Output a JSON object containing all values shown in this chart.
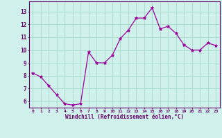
{
  "x": [
    0,
    1,
    2,
    3,
    4,
    5,
    6,
    7,
    8,
    9,
    10,
    11,
    12,
    13,
    14,
    15,
    16,
    17,
    18,
    19,
    20,
    21,
    22,
    23
  ],
  "y": [
    8.2,
    7.9,
    7.2,
    6.5,
    5.8,
    5.7,
    5.8,
    9.85,
    9.0,
    9.0,
    9.6,
    10.9,
    11.55,
    12.5,
    12.5,
    13.3,
    11.65,
    11.85,
    11.3,
    10.4,
    10.0,
    10.0,
    10.55,
    10.35
  ],
  "line_color": "#990099",
  "marker": "*",
  "bg_color": "#cff0eb",
  "grid_color": "#aaddcc",
  "xlabel": "Windchill (Refroidissement éolien,°C)",
  "xlabel_color": "#660066",
  "tick_color": "#660066",
  "ylabel_ticks": [
    6,
    7,
    8,
    9,
    10,
    11,
    12,
    13
  ],
  "xtick_labels": [
    "0",
    "1",
    "2",
    "3",
    "4",
    "5",
    "6",
    "7",
    "8",
    "9",
    "10",
    "11",
    "12",
    "13",
    "14",
    "15",
    "16",
    "17",
    "18",
    "19",
    "20",
    "21",
    "22",
    "23"
  ],
  "ylim": [
    5.5,
    13.8
  ],
  "xlim": [
    -0.5,
    23.5
  ],
  "figsize": [
    3.2,
    2.0
  ],
  "dpi": 100
}
